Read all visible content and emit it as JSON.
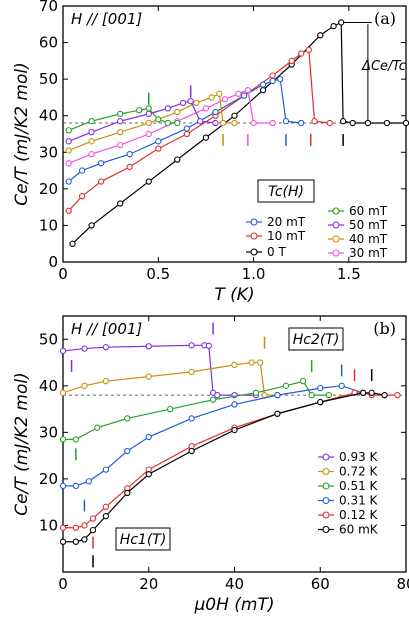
{
  "chart_data": [
    {
      "type": "scatter",
      "panel_label": "(a)",
      "field_note": "H // [001]",
      "xlabel": "T (K)",
      "ylabel": "Ce/T (mJ/K2 mol)",
      "xlim": [
        0,
        1.8
      ],
      "ylim": [
        0,
        70
      ],
      "xticks": [
        "0",
        "0.5",
        "1.0",
        "1.5"
      ],
      "yticks": [
        "0",
        "10",
        "20",
        "30",
        "40",
        "50",
        "60",
        "70"
      ],
      "annotations": {
        "tc_label": "Tc(H)",
        "jump_label": "ΔCe/Tc"
      },
      "legend": [
        "20 mT",
        "10 mT",
        "0 T",
        "60 mT",
        "50 mT",
        "40 mT",
        "30 mT"
      ],
      "series": [
        {
          "name": "0 T",
          "color": "#000000",
          "x": [
            0.05,
            0.15,
            0.3,
            0.45,
            0.6,
            0.75,
            0.9,
            1.05,
            1.2,
            1.35,
            1.42,
            1.46,
            1.47,
            1.52,
            1.6,
            1.7,
            1.8
          ],
          "y": [
            5,
            10,
            16,
            22,
            28,
            34,
            40,
            47,
            54,
            62,
            64.5,
            65.5,
            38.5,
            38,
            38,
            38,
            38
          ]
        },
        {
          "name": "10 mT",
          "color": "#e03030",
          "x": [
            0.03,
            0.1,
            0.2,
            0.35,
            0.5,
            0.65,
            0.8,
            0.95,
            1.1,
            1.2,
            1.25,
            1.29,
            1.32,
            1.4
          ],
          "y": [
            14,
            18,
            22,
            26,
            31,
            35,
            40,
            45.5,
            51,
            55,
            57,
            58,
            38.5,
            38
          ]
        },
        {
          "name": "20 mT",
          "color": "#1f5fd6",
          "x": [
            0.03,
            0.1,
            0.2,
            0.35,
            0.5,
            0.65,
            0.8,
            0.95,
            1.05,
            1.1,
            1.14,
            1.17,
            1.25
          ],
          "y": [
            22,
            25,
            27,
            29.5,
            33,
            36.5,
            41,
            45.5,
            48.5,
            49.5,
            50,
            38.5,
            38
          ]
        },
        {
          "name": "30 mT",
          "color": "#ee55dd",
          "x": [
            0.03,
            0.15,
            0.3,
            0.45,
            0.6,
            0.75,
            0.85,
            0.92,
            0.97,
            1.0,
            1.1
          ],
          "y": [
            27,
            29.5,
            32,
            35,
            38.5,
            42,
            44.5,
            46,
            47,
            38,
            38
          ]
        },
        {
          "name": "40 mT",
          "color": "#c89010",
          "x": [
            0.03,
            0.15,
            0.3,
            0.45,
            0.6,
            0.7,
            0.78,
            0.82,
            0.84,
            0.9
          ],
          "y": [
            30.5,
            33,
            35.5,
            38,
            41,
            43.5,
            45,
            46,
            38,
            38
          ]
        },
        {
          "name": "50 mT",
          "color": "#8030e0",
          "x": [
            0.03,
            0.15,
            0.3,
            0.45,
            0.55,
            0.63,
            0.67,
            0.72,
            0.8
          ],
          "y": [
            33,
            35.5,
            38.5,
            40.5,
            42,
            43.5,
            44,
            38.5,
            38
          ]
        },
        {
          "name": "60 mT",
          "color": "#28a028",
          "x": [
            0.03,
            0.15,
            0.3,
            0.4,
            0.45,
            0.5,
            0.55,
            0.6
          ],
          "y": [
            36,
            38.5,
            40.5,
            41.5,
            42,
            39,
            38,
            38
          ]
        }
      ],
      "reference_line_y": 38
    },
    {
      "type": "scatter",
      "panel_label": "(b)",
      "field_note": "H // [001]",
      "xlabel": "μ0H (mT)",
      "ylabel": "Ce/T (mJ/K2 mol)",
      "xlim": [
        0,
        80
      ],
      "ylim": [
        0,
        55
      ],
      "xticks": [
        "0",
        "20",
        "40",
        "60",
        "80"
      ],
      "yticks": [
        "10",
        "20",
        "30",
        "40",
        "50"
      ],
      "annotations": {
        "hc2_label": "Hc2(T)",
        "hc1_label": "Hc1(T)"
      },
      "legend": [
        "0.93 K",
        "0.72 K",
        "0.51 K",
        "0.31 K",
        "0.12 K",
        "60 mK"
      ],
      "series": [
        {
          "name": "0.93 K",
          "color": "#8030e0",
          "x": [
            0,
            5,
            10,
            20,
            30,
            33,
            34,
            35,
            36,
            40,
            45
          ],
          "y": [
            47.5,
            48,
            48.3,
            48.5,
            48.7,
            48.7,
            48.6,
            38.5,
            38,
            38,
            38
          ]
        },
        {
          "name": "0.72 K",
          "color": "#c89010",
          "x": [
            0,
            5,
            10,
            20,
            30,
            40,
            44,
            46,
            47,
            50
          ],
          "y": [
            38.5,
            40,
            41,
            42,
            43,
            44.5,
            45,
            45,
            38,
            38
          ]
        },
        {
          "name": "0.51 K",
          "color": "#28a028",
          "x": [
            0,
            3,
            8,
            15,
            25,
            35,
            45,
            52,
            56,
            58,
            62
          ],
          "y": [
            28.5,
            28.5,
            31,
            33,
            35,
            37,
            38.5,
            40,
            41,
            38,
            38
          ]
        },
        {
          "name": "0.31 K",
          "color": "#1f5fd6",
          "x": [
            0,
            3,
            6,
            10,
            15,
            20,
            30,
            40,
            50,
            60,
            65,
            70
          ],
          "y": [
            18.5,
            18.5,
            19.5,
            22,
            26,
            29,
            33,
            36,
            38,
            39.5,
            40,
            38.5
          ]
        },
        {
          "name": "0.12 K",
          "color": "#e03030",
          "x": [
            0,
            3,
            5,
            7,
            10,
            15,
            20,
            30,
            40,
            50,
            60,
            68,
            70,
            72,
            78
          ],
          "y": [
            9.5,
            9.5,
            10,
            11.5,
            14,
            18,
            22,
            27,
            31,
            34,
            36.5,
            38.5,
            38.5,
            38,
            38
          ]
        },
        {
          "name": "60 mK",
          "color": "#000000",
          "x": [
            0,
            3,
            5,
            7,
            10,
            15,
            20,
            30,
            40,
            50,
            60,
            70,
            72,
            75
          ],
          "y": [
            6.5,
            6.5,
            7,
            9,
            12,
            17,
            21,
            26,
            30.5,
            34,
            36.5,
            38.5,
            38.5,
            38
          ]
        }
      ],
      "reference_line_y": 38
    }
  ]
}
